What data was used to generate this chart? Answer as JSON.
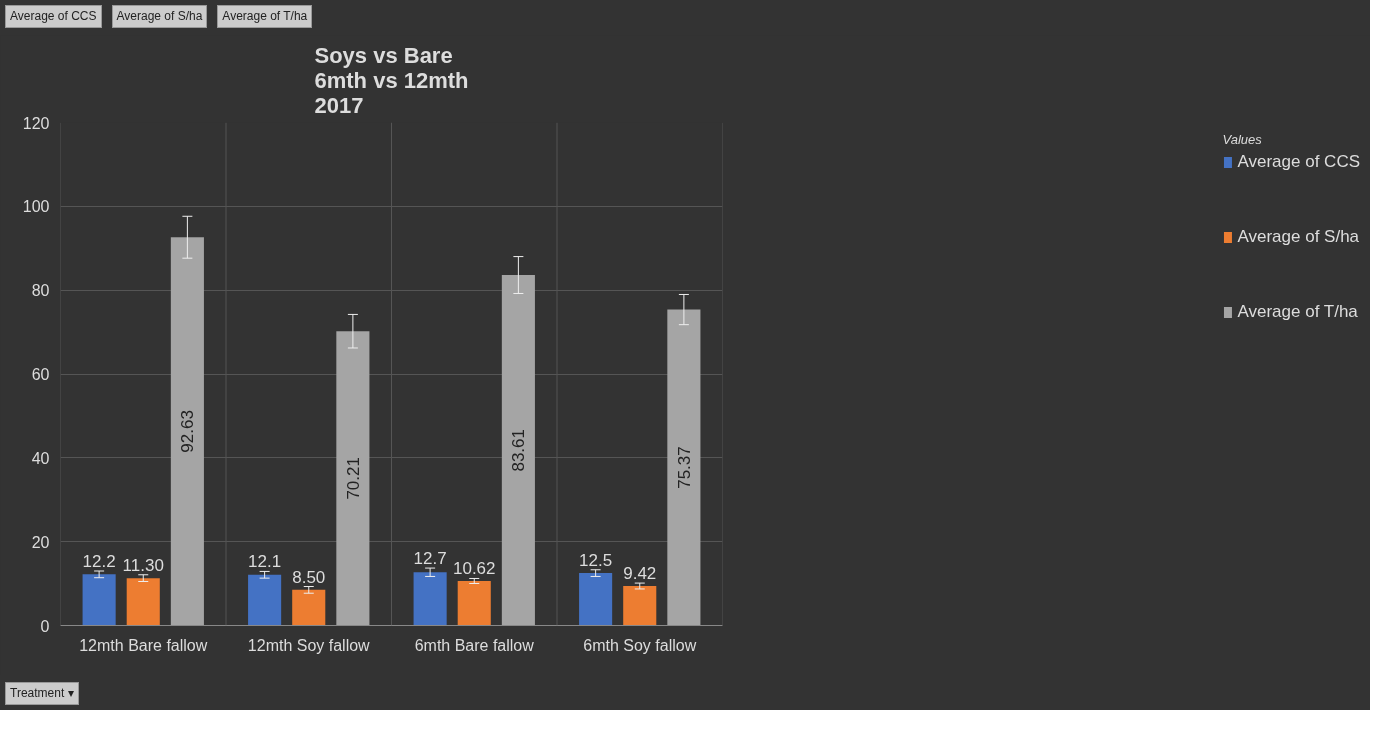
{
  "chart_data": {
    "type": "bar",
    "title": "Soys vs Bare\n6mth vs 12mth\n2017",
    "categories": [
      "12mth Bare fallow",
      "12mth Soy fallow",
      "6mth Bare fallow",
      "6mth Soy fallow"
    ],
    "series": [
      {
        "name": "Average of CCS",
        "color": "#4472c4",
        "values": [
          12.2,
          12.1,
          12.7,
          12.5
        ],
        "errors": [
          0.8,
          0.8,
          1,
          0.8
        ],
        "value_labels": [
          "12.2",
          "12.1",
          "12.7",
          "12.5"
        ]
      },
      {
        "name": "Average of S/ha",
        "color": "#ed7d31",
        "values": [
          11.3,
          8.5,
          10.62,
          9.42
        ],
        "errors": [
          0.8,
          0.8,
          0.6,
          0.7
        ],
        "value_labels": [
          "11.30",
          "8.50",
          "10.62",
          "9.42"
        ]
      },
      {
        "name": "Average of T/ha",
        "color": "#a5a5a5",
        "values": [
          92.63,
          70.21,
          83.61,
          75.37
        ],
        "errors": [
          5,
          4,
          4.4,
          3.6
        ],
        "value_labels": [
          "92.63",
          "70.21",
          "83.61",
          "75.37"
        ]
      }
    ],
    "ylim": [
      0,
      120
    ],
    "yticks": [
      0,
      20,
      40,
      60,
      80,
      100,
      120
    ],
    "grid": true,
    "legend": "right",
    "legend_title": "Values",
    "annotations": [
      "Average of CCS",
      "Average of S/ha",
      "Average of T/ha",
      "Treatment ▾"
    ]
  }
}
